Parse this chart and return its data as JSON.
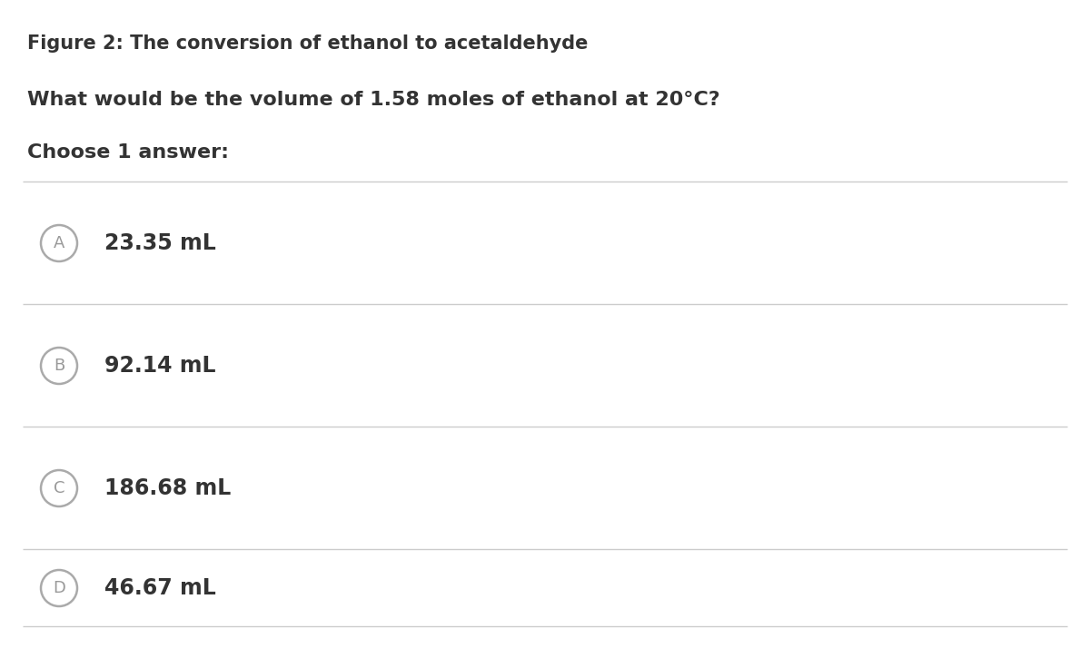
{
  "figure_caption": "Figure 2: The conversion of ethanol to acetaldehyde",
  "question": "What would be the volume of 1.58 moles of ethanol at 20°C?",
  "choose_text": "Choose 1 answer:",
  "options": [
    {
      "label": "A",
      "text": "23.35 mL"
    },
    {
      "label": "B",
      "text": "92.14 mL"
    },
    {
      "label": "C",
      "text": "186.68 mL"
    },
    {
      "label": "D",
      "text": "46.67 mL"
    }
  ],
  "bg_color": "#ffffff",
  "text_color": "#333333",
  "label_color": "#999999",
  "circle_edge_color": "#aaaaaa",
  "line_color": "#cccccc",
  "caption_fontsize": 15,
  "question_fontsize": 16,
  "choose_fontsize": 16,
  "option_fontsize": 17,
  "label_fontsize": 13,
  "fig_width": 12.0,
  "fig_height": 7.25,
  "dpi": 100
}
